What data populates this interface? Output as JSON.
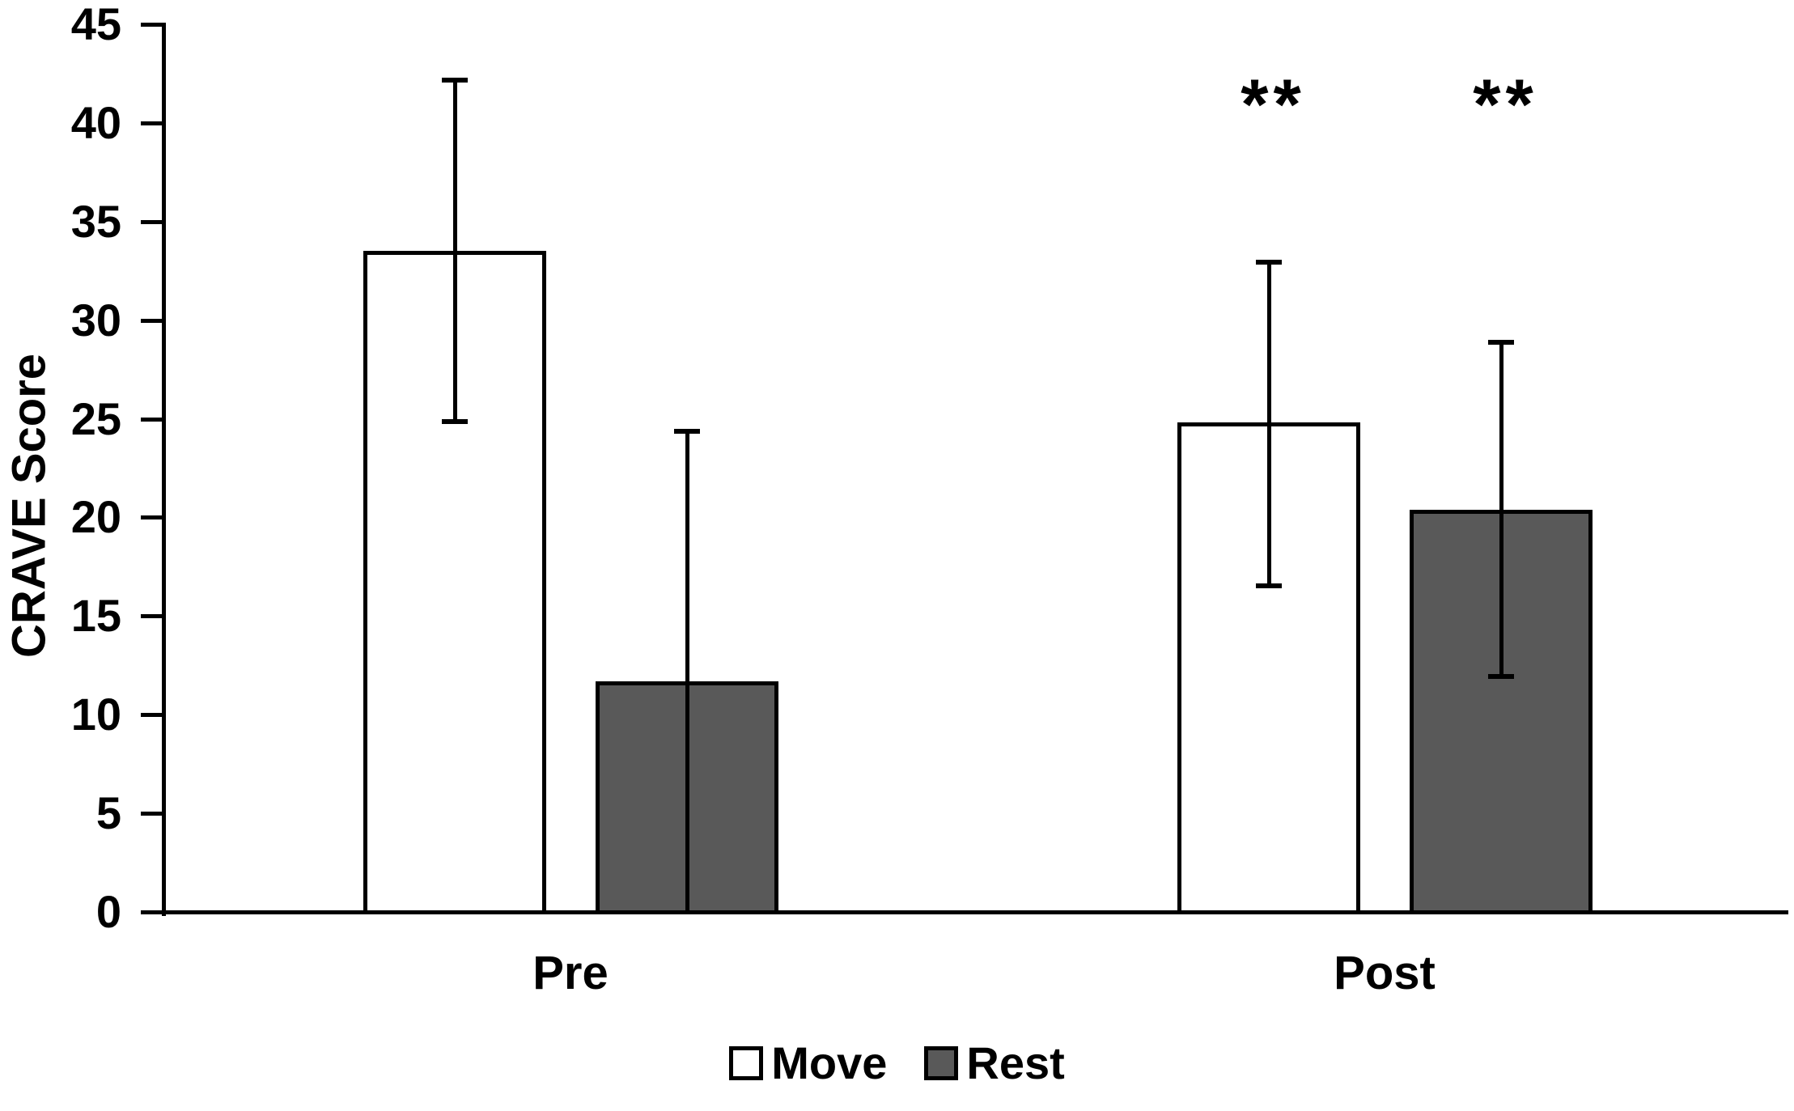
{
  "figure": {
    "ylabel": "CRAVE Score",
    "legend": [
      {
        "label": "Move",
        "fill": "#FFFFFF"
      },
      {
        "label": "Rest",
        "fill": "#595959"
      }
    ]
  },
  "chart_data": {
    "type": "bar",
    "title": "",
    "xlabel": "",
    "ylabel": "CRAVE Score",
    "categories": [
      "Pre",
      "Post"
    ],
    "ylim": [
      0,
      45
    ],
    "y_tick_step": 5,
    "y_ticks": [
      0,
      5,
      10,
      15,
      20,
      25,
      30,
      35,
      40,
      45
    ],
    "grid": false,
    "legend_position": "bottom",
    "bar_outline_color": "#000000",
    "series": [
      {
        "name": "Move",
        "fill": "#FFFFFF",
        "values": [
          33.5,
          24.8
        ],
        "error_upper": [
          42.2,
          33.0
        ],
        "error_lower": [
          24.8,
          16.5
        ],
        "lower_cap": [
          true,
          true
        ]
      },
      {
        "name": "Rest",
        "fill": "#595959",
        "values": [
          11.7,
          20.4
        ],
        "error_upper": [
          24.4,
          28.9
        ],
        "error_lower": [
          0,
          11.9
        ],
        "lower_cap": [
          false,
          true
        ]
      }
    ],
    "annotations": [
      {
        "text": "**",
        "category": "Post",
        "series": "Move"
      },
      {
        "text": "**",
        "category": "Post",
        "series": "Rest"
      }
    ]
  }
}
